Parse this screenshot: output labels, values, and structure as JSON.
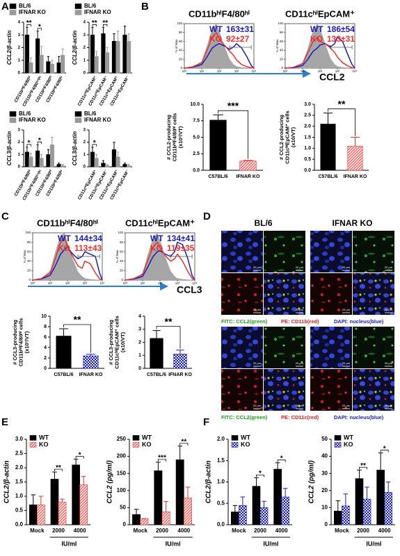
{
  "panels": [
    "A",
    "B",
    "C",
    "D",
    "E",
    "F"
  ],
  "panel_d": {
    "columns": [
      "BL/6",
      "IFNAR KO"
    ],
    "rows": [
      {
        "caption": [
          "FITC: CCL2(green)",
          "PE: CD11b(red)",
          "DAPI: nucleus(blue)"
        ]
      },
      {
        "caption": [
          "FITC: CCL2(green)",
          "PE: CD11c(red)",
          "DAPI: nucleus(blue)"
        ]
      }
    ],
    "scale": "20 μm"
  },
  "chart_data": [
    {
      "type": "bar",
      "y_label": "CCL2/β-actin",
      "categories": [
        "CD11bʰⁱF4/80ʰⁱ",
        "CD11bʰⁱF4/80ⁱⁿᵗ/ˡᵒ",
        "CD11bˡᵒF4/80ʰⁱ",
        "CD11bˡᵒF4/80ˡᵒ"
      ],
      "series": [
        {
          "name": "BL/6",
          "color": "#000000",
          "values": [
            3.0,
            2.7,
            0.9,
            0.8
          ],
          "errors": [
            0.6,
            0.6,
            0.4,
            0.5
          ]
        },
        {
          "name": "IFNAR KO",
          "color": "#999999",
          "values": [
            0.8,
            1.4,
            0.7,
            1.4
          ],
          "errors": [
            0.4,
            0.7,
            0.3,
            0.5
          ]
        }
      ],
      "significance": [
        "**",
        "*",
        null,
        null
      ],
      "ylim": [
        0,
        4
      ],
      "yticks": [
        0,
        1,
        2,
        3,
        4
      ]
    },
    {
      "type": "bar",
      "y_label": "CCL2/β-actin",
      "categories": [
        "CD11cʰⁱEpCAM⁺",
        "CD11cʰⁱEpCAM⁻",
        "CD11cˡᵒEpCAM⁺",
        "CD11cˡᵒEpCAM⁻"
      ],
      "series": [
        {
          "name": "BL/6",
          "color": "#000000",
          "values": [
            3.0,
            3.1,
            2.5,
            3.0
          ],
          "errors": [
            0.6,
            0.5,
            0.6,
            0.7
          ]
        },
        {
          "name": "IFNAR KO",
          "color": "#999999",
          "values": [
            1.3,
            1.6,
            2.5,
            2.5
          ],
          "errors": [
            0.4,
            0.4,
            0.8,
            0.6
          ]
        }
      ],
      "significance": [
        "**",
        "**",
        null,
        null
      ],
      "ylim": [
        0,
        4
      ],
      "yticks": [
        0,
        1,
        2,
        3,
        4
      ]
    },
    {
      "type": "bar",
      "y_label": "CCL3/β-actin",
      "categories": [
        "CD11bʰⁱF4/80ʰⁱ",
        "CD11bʰⁱF4/80ⁱⁿᵗ/ˡᵒ",
        "CD11bˡᵒF4/80ʰⁱ",
        "CD11bˡᵒF4/80ˡᵒ"
      ],
      "series": [
        {
          "name": "BL/6",
          "color": "#000000",
          "values": [
            1.2,
            1.3,
            1.0,
            0.2
          ],
          "errors": [
            0.4,
            0.5,
            0.4,
            0.1
          ]
        },
        {
          "name": "IFNAR KO",
          "color": "#999999",
          "values": [
            0.8,
            0.7,
            1.8,
            0.1
          ],
          "errors": [
            0.3,
            0.3,
            0.6,
            0.1
          ]
        }
      ],
      "significance": [
        "*",
        "*",
        null,
        null
      ],
      "ylim": [
        0,
        3
      ],
      "yticks": [
        0,
        1,
        2,
        3
      ]
    },
    {
      "type": "bar",
      "y_label": "CCL3/β-actin",
      "categories": [
        "CD11cʰⁱEpCAM⁺",
        "CD11cʰⁱEpCAM⁻",
        "CD11cˡᵒEpCAM⁺",
        "CD11cˡᵒEpCAM⁻"
      ],
      "series": [
        {
          "name": "BL/6",
          "color": "#000000",
          "values": [
            1.2,
            0.3,
            1.4,
            0.2
          ],
          "errors": [
            0.4,
            0.2,
            0.6,
            0.1
          ]
        },
        {
          "name": "IFNAR KO",
          "color": "#999999",
          "values": [
            0.7,
            0.1,
            0.8,
            0.1
          ],
          "errors": [
            0.3,
            0.1,
            0.4,
            0.1
          ]
        }
      ],
      "significance": [
        "*",
        null,
        null,
        null
      ],
      "ylim": [
        0,
        3
      ],
      "yticks": [
        0,
        1,
        2,
        3
      ]
    },
    {
      "type": "flow",
      "title": "CD11bʰⁱF4/80ʰⁱ",
      "y_label": "% of Max",
      "x_label": "CCL2",
      "xscale": "log",
      "xlim": [
        1,
        10000
      ],
      "xticks": [
        {
          "value": 1,
          "label": "10⁰"
        },
        {
          "value": 10,
          "label": "10¹"
        },
        {
          "value": 100,
          "label": "10²"
        },
        {
          "value": 1000,
          "label": "10³"
        },
        {
          "value": 10000,
          "label": "10⁴"
        }
      ],
      "ylim": [
        0,
        100
      ],
      "yticks": [
        0,
        20,
        40,
        60,
        80,
        100
      ],
      "x": [
        1,
        3,
        10,
        20,
        40,
        70,
        100,
        200,
        400,
        700,
        1000,
        2000,
        4000,
        7000,
        10000
      ],
      "series": [
        {
          "color": "#a6a6a6",
          "filled": true,
          "values": [
            0,
            3,
            15,
            50,
            90,
            100,
            85,
            50,
            20,
            8,
            4,
            2,
            1,
            0,
            0
          ]
        },
        {
          "name": "WT",
          "stat": "163±31",
          "color": "#1c1cb8",
          "values": [
            0,
            2,
            8,
            25,
            45,
            52,
            55,
            50,
            42,
            48,
            55,
            45,
            25,
            6,
            0
          ]
        },
        {
          "name": "KO",
          "stat": "92±27",
          "color": "#e8322e",
          "values": [
            0,
            3,
            12,
            40,
            70,
            80,
            65,
            52,
            38,
            28,
            18,
            8,
            3,
            1,
            0
          ]
        }
      ]
    },
    {
      "type": "flow",
      "title": "CD11cʰⁱEpCAM⁺",
      "y_label": "% of Max",
      "xscale": "log",
      "xlim": [
        1,
        10000
      ],
      "xticks": [
        {
          "value": 1,
          "label": "10⁰"
        },
        {
          "value": 10,
          "label": "10¹"
        },
        {
          "value": 100,
          "label": "10²"
        },
        {
          "value": 1000,
          "label": "10³"
        },
        {
          "value": 10000,
          "label": "10⁴"
        }
      ],
      "ylim": [
        0,
        100
      ],
      "yticks": [
        0,
        20,
        40,
        60,
        80,
        100
      ],
      "x": [
        1,
        3,
        10,
        20,
        40,
        70,
        100,
        200,
        400,
        700,
        1000,
        2000,
        4000,
        7000,
        10000
      ],
      "series": [
        {
          "color": "#a6a6a6",
          "filled": true,
          "values": [
            0,
            2,
            12,
            45,
            85,
            100,
            90,
            55,
            22,
            9,
            4,
            2,
            1,
            0,
            0
          ]
        },
        {
          "name": "WT",
          "stat": "186±54",
          "color": "#1c1cb8",
          "values": [
            0,
            1,
            6,
            20,
            38,
            45,
            52,
            55,
            48,
            55,
            70,
            60,
            30,
            8,
            0
          ]
        },
        {
          "name": "KO",
          "stat": "133±31",
          "color": "#e8322e",
          "values": [
            0,
            2,
            10,
            35,
            60,
            70,
            60,
            55,
            45,
            35,
            25,
            12,
            5,
            1,
            0
          ]
        }
      ]
    },
    {
      "type": "bar",
      "y_label": [
        "# CCL2-producing",
        "CD11bʰⁱF4/80ʰⁱ cells",
        "(x10²/VT)"
      ],
      "categories": [
        "C57BL/6",
        "IFNAR KO"
      ],
      "values": [
        7.6,
        1.4
      ],
      "errors": [
        0.8,
        0.1
      ],
      "colors": [
        "#000000",
        "#e8322e"
      ],
      "patterns": [
        "solid",
        "hatch"
      ],
      "significance": "***",
      "ylim": [
        0,
        10
      ],
      "yticks": [
        {
          "value": 0,
          "label": "0.0"
        },
        2.5,
        {
          "value": 5,
          "label": "5.0"
        },
        7.5,
        {
          "value": 10,
          "label": "10.0"
        }
      ]
    },
    {
      "type": "bar",
      "y_label": [
        "# CCL2-producing",
        "CD11cʰⁱEpCAM⁺ cells",
        "(x10/VT)"
      ],
      "categories": [
        "C57BL/6",
        "IFNAR KO"
      ],
      "values": [
        2.1,
        1.1
      ],
      "errors": [
        0.5,
        0.4
      ],
      "colors": [
        "#000000",
        "#e8322e"
      ],
      "patterns": [
        "solid",
        "hatch"
      ],
      "significance": "**",
      "ylim": [
        0,
        3
      ],
      "yticks": [
        {
          "value": 0,
          "label": "0.0"
        },
        0.5,
        {
          "value": 1,
          "label": "1.0"
        },
        1.5,
        {
          "value": 2,
          "label": "2.0"
        },
        2.5,
        {
          "value": 3,
          "label": "3.0"
        }
      ]
    },
    {
      "type": "flow",
      "title": "CD11bʰⁱF4/80ʰⁱ",
      "y_label": "% of Max",
      "x_label": "CCL3",
      "xscale": "log",
      "xlim": [
        1,
        10000
      ],
      "xticks": [
        {
          "value": 1,
          "label": "10⁰"
        },
        {
          "value": 10,
          "label": "10¹"
        },
        {
          "value": 100,
          "label": "10²"
        },
        {
          "value": 1000,
          "label": "10³"
        },
        {
          "value": 10000,
          "label": "10⁴"
        }
      ],
      "ylim": [
        0,
        100
      ],
      "yticks": [
        0,
        20,
        40,
        60,
        80,
        100
      ],
      "x": [
        1,
        3,
        10,
        20,
        40,
        70,
        100,
        200,
        400,
        700,
        1000,
        2000,
        4000,
        7000,
        10000
      ],
      "series": [
        {
          "color": "#a6a6a6",
          "filled": true,
          "values": [
            0,
            3,
            20,
            60,
            95,
            100,
            80,
            45,
            18,
            8,
            4,
            2,
            1,
            0,
            0
          ]
        },
        {
          "name": "WT",
          "stat": "144±34",
          "color": "#1c1cb8",
          "values": [
            0,
            2,
            10,
            30,
            55,
            65,
            70,
            55,
            45,
            50,
            60,
            55,
            50,
            15,
            0
          ]
        },
        {
          "name": "KO",
          "stat": "113±43",
          "color": "#e8322e",
          "values": [
            0,
            3,
            15,
            45,
            80,
            90,
            70,
            50,
            30,
            25,
            40,
            35,
            15,
            3,
            0
          ]
        }
      ]
    },
    {
      "type": "flow",
      "title": "CD11cʰⁱEpCAM⁺",
      "y_label": "% of Max",
      "xscale": "log",
      "xlim": [
        1,
        10000
      ],
      "xticks": [
        {
          "value": 1,
          "label": "10⁰"
        },
        {
          "value": 10,
          "label": "10¹"
        },
        {
          "value": 100,
          "label": "10²"
        },
        {
          "value": 1000,
          "label": "10³"
        },
        {
          "value": 10000,
          "label": "10⁴"
        }
      ],
      "ylim": [
        0,
        100
      ],
      "yticks": [
        0,
        20,
        40,
        60,
        80,
        100
      ],
      "x": [
        1,
        3,
        10,
        20,
        40,
        70,
        100,
        200,
        400,
        700,
        1000,
        2000,
        4000,
        7000,
        10000
      ],
      "series": [
        {
          "color": "#a6a6a6",
          "filled": true,
          "values": [
            0,
            2,
            15,
            55,
            90,
            100,
            85,
            50,
            20,
            8,
            4,
            2,
            1,
            0,
            0
          ]
        },
        {
          "name": "WT",
          "stat": "134±41",
          "color": "#1c1cb8",
          "values": [
            0,
            2,
            8,
            28,
            50,
            60,
            62,
            55,
            50,
            60,
            80,
            75,
            45,
            10,
            0
          ]
        },
        {
          "name": "KO",
          "stat": "119±35",
          "color": "#e8322e",
          "values": [
            0,
            3,
            12,
            42,
            70,
            80,
            68,
            52,
            40,
            45,
            55,
            40,
            18,
            4,
            0
          ]
        }
      ]
    },
    {
      "type": "bar",
      "y_label": [
        "# CCL3-producing",
        "CD11bʰⁱF4/80ʰⁱ cells",
        "(x10²/VT)"
      ],
      "categories": [
        "C57BL/6",
        "IFNAR KO"
      ],
      "values": [
        6.2,
        2.4
      ],
      "errors": [
        1.4,
        0.3
      ],
      "colors": [
        "#000000",
        "#1c1cb8"
      ],
      "patterns": [
        "solid",
        "check"
      ],
      "significance": "**",
      "ylim": [
        0,
        10
      ],
      "yticks": [
        0,
        2,
        4,
        6,
        8,
        10
      ]
    },
    {
      "type": "bar",
      "y_label": [
        "# CCL3-producing",
        "CD11cʰⁱEpCAM⁺ cells",
        "(x10/VT)"
      ],
      "categories": [
        "C57BL/6",
        "IFNAR KO"
      ],
      "values": [
        2.3,
        1.1
      ],
      "errors": [
        0.6,
        0.3
      ],
      "colors": [
        "#000000",
        "#1c1cb8"
      ],
      "patterns": [
        "solid",
        "check"
      ],
      "significance": "**",
      "ylim": [
        0,
        4
      ],
      "yticks": [
        0,
        1,
        2,
        3,
        4
      ]
    },
    {
      "type": "bar",
      "y_label": "CCL2/β-actin",
      "categories": [
        "Mock",
        "2000",
        "4000"
      ],
      "x_label": "IU/ml",
      "series": [
        {
          "name": "WT",
          "color": "#000000",
          "values": [
            0.7,
            1.6,
            2.1
          ],
          "errors": [
            0.35,
            0.25,
            0.2
          ]
        },
        {
          "name": "KO",
          "color": "#e8322e",
          "pattern": "hatch",
          "values": [
            0.7,
            0.8,
            1.4
          ],
          "errors": [
            0.3,
            0.1,
            0.3
          ]
        }
      ],
      "significance": [
        null,
        "**",
        "*"
      ],
      "ylim": [
        0,
        3
      ],
      "yticks": [
        {
          "value": 0,
          "label": "0.0"
        },
        0.5,
        {
          "value": 1,
          "label": "1.0"
        },
        1.5,
        {
          "value": 2,
          "label": "2.0"
        },
        2.5,
        {
          "value": 3,
          "label": "3.0"
        }
      ]
    },
    {
      "type": "bar",
      "y_label": "CCL2 (pg/ml)",
      "categories": [
        "Mock",
        "2000",
        "4000"
      ],
      "x_label": "IU/ml",
      "series": [
        {
          "name": "WT",
          "color": "#000000",
          "values": [
            30,
            158,
            190
          ],
          "errors": [
            15,
            25,
            40
          ]
        },
        {
          "name": "KO",
          "color": "#e8322e",
          "pattern": "hatch",
          "values": [
            18,
            38,
            78
          ],
          "errors": [
            0,
            30,
            32
          ]
        }
      ],
      "significance": [
        null,
        "***",
        "**"
      ],
      "ylim": [
        0,
        250
      ],
      "yticks": [
        0,
        50,
        100,
        150,
        200,
        250
      ]
    },
    {
      "type": "bar",
      "y_label": "CCL2/β-actin",
      "categories": [
        "Mock",
        "2000",
        "4000"
      ],
      "x_label": "IU/ml",
      "series": [
        {
          "name": "WT",
          "color": "#000000",
          "values": [
            0.3,
            0.9,
            1.3
          ],
          "errors": [
            0.15,
            0.2,
            0.15
          ]
        },
        {
          "name": "KO",
          "color": "#1c1cb8",
          "pattern": "check",
          "values": [
            0.45,
            0.4,
            0.65
          ],
          "errors": [
            0.2,
            0.15,
            0.2
          ]
        }
      ],
      "significance": [
        null,
        "*",
        "*"
      ],
      "ylim": [
        0,
        2
      ],
      "yticks": [
        {
          "value": 0,
          "label": "0.0"
        },
        0.5,
        {
          "value": 1,
          "label": "1.0"
        },
        1.5,
        {
          "value": 2,
          "label": "2.0"
        }
      ]
    },
    {
      "type": "bar",
      "y_label": "CCL2 (pg/ml)",
      "categories": [
        "Mock",
        "2000",
        "4000"
      ],
      "x_label": "IU/ml",
      "series": [
        {
          "name": "WT",
          "color": "#000000",
          "values": [
            8,
            27,
            32
          ],
          "errors": [
            6,
            5,
            10
          ]
        },
        {
          "name": "KO",
          "color": "#1c1cb8",
          "pattern": "check",
          "values": [
            11,
            15,
            19
          ],
          "errors": [
            7,
            7,
            6
          ]
        }
      ],
      "significance": [
        null,
        "**",
        "*"
      ],
      "ylim": [
        0,
        50
      ],
      "yticks": [
        0,
        10,
        20,
        30,
        40,
        50
      ]
    }
  ]
}
